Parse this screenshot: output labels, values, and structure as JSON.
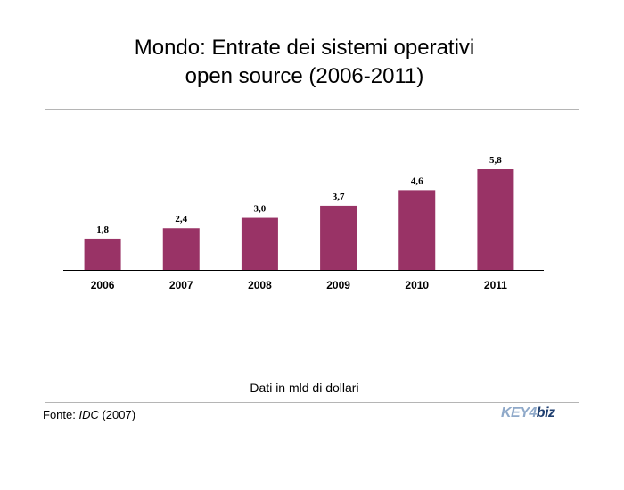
{
  "title_line1": "Mondo: Entrate dei sistemi operativi",
  "title_line2": "open source (2006-2011)",
  "note": "Dati in mld di dollari",
  "source": {
    "label": "Fonte: ",
    "name": "IDC",
    "year": " (2007)"
  },
  "logo": {
    "part1": "KEY4",
    "part2": "biz"
  },
  "colors": {
    "bar": "#993366",
    "axis": "#000000",
    "rule": "#b5b5b5"
  },
  "chart_data": {
    "type": "bar",
    "categories": [
      "2006",
      "2007",
      "2008",
      "2009",
      "2010",
      "2011"
    ],
    "values": [
      1.8,
      2.4,
      3.0,
      3.7,
      4.6,
      5.8
    ],
    "value_labels": [
      "1,8",
      "2,4",
      "3,0",
      "3,7",
      "4,6",
      "5,8"
    ],
    "title": "Mondo: Entrate dei sistemi operativi open source (2006-2011)",
    "xlabel": "",
    "ylabel": "",
    "ylim": [
      0,
      5.8
    ],
    "grid": false,
    "legend": "none"
  }
}
